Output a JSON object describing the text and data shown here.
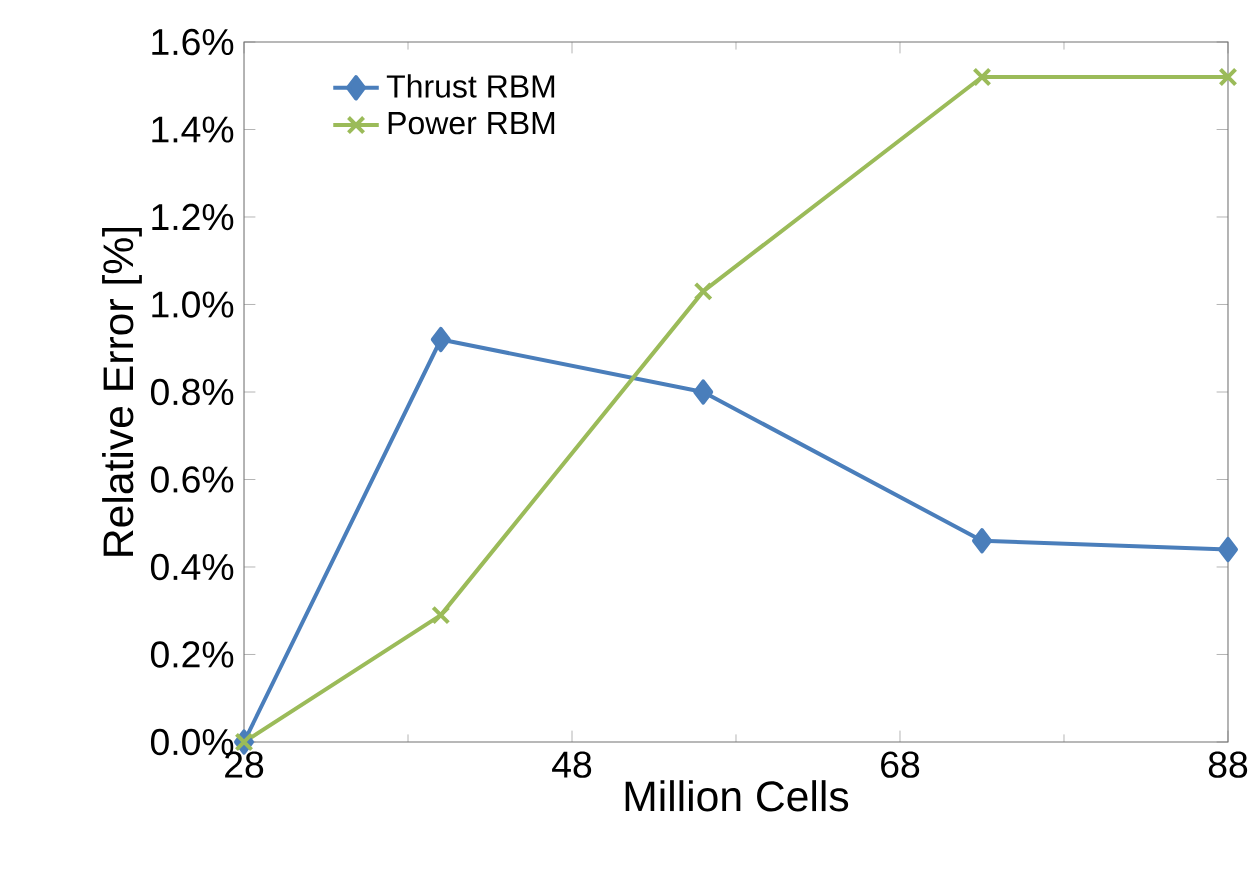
{
  "chart_data": {
    "type": "line",
    "xlabel": "Million Cells",
    "ylabel": "Relative Error [%]",
    "x": [
      28,
      40,
      56,
      73,
      88
    ],
    "series": [
      {
        "name": "Thrust RBM",
        "color": "#4a7ebb",
        "marker": "diamond",
        "values": [
          0,
          0.92,
          0.8,
          0.46,
          0.44
        ]
      },
      {
        "name": "Power RBM",
        "color": "#9bbb59",
        "marker": "cross",
        "values": [
          0,
          0.29,
          1.03,
          1.52,
          1.52
        ]
      }
    ],
    "xlim": [
      28,
      88
    ],
    "xticks": [
      28,
      48,
      68,
      88
    ],
    "ylim": [
      0,
      1.6
    ],
    "yticks": [
      {
        "value": 0,
        "label": "0.0%"
      },
      {
        "value": 0.2,
        "label": "0.2%"
      },
      {
        "value": 0.4,
        "label": "0.4%"
      },
      {
        "value": 0.6,
        "label": "0.6%"
      },
      {
        "value": 0.8,
        "label": "0.8%"
      },
      {
        "value": 1.0,
        "label": "1.0%"
      },
      {
        "value": 1.2,
        "label": "1.2%"
      },
      {
        "value": 1.4,
        "label": "1.4%"
      },
      {
        "value": 1.6,
        "label": "1.6%"
      }
    ],
    "grid": false,
    "legend": "top left",
    "line_style": "solid"
  }
}
